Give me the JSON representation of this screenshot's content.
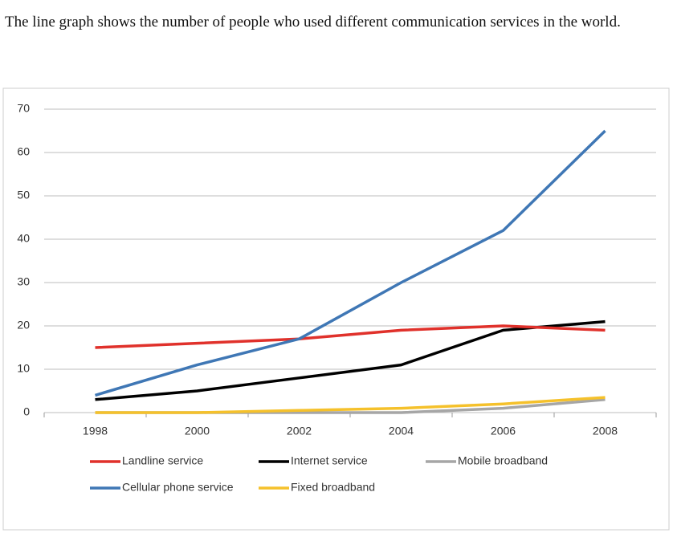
{
  "chart_data": {
    "type": "line",
    "title": "The line graph shows the number of people who used different communication services in the world.",
    "categories": [
      "1998",
      "2000",
      "2002",
      "2004",
      "2006",
      "2008"
    ],
    "series": [
      {
        "name": "Landline service",
        "color": "#e0312b",
        "values": [
          15,
          16,
          17,
          19,
          20,
          19
        ]
      },
      {
        "name": "Internet service",
        "color": "#000000",
        "values": [
          3,
          5,
          8,
          11,
          19,
          21
        ]
      },
      {
        "name": "Mobile broadband",
        "color": "#a6a6a6",
        "values": [
          0,
          0,
          0,
          0,
          1,
          3
        ]
      },
      {
        "name": "Cellular phone service",
        "color": "#3f77b5",
        "values": [
          4,
          11,
          17,
          30,
          42,
          65
        ]
      },
      {
        "name": "Fixed broadband",
        "color": "#f5c12b",
        "values": [
          0,
          0,
          0.5,
          1,
          2,
          3.5
        ]
      }
    ],
    "ylim": [
      0,
      70
    ],
    "yticks": [
      0,
      10,
      20,
      30,
      40,
      50,
      60,
      70
    ],
    "grid": true
  }
}
